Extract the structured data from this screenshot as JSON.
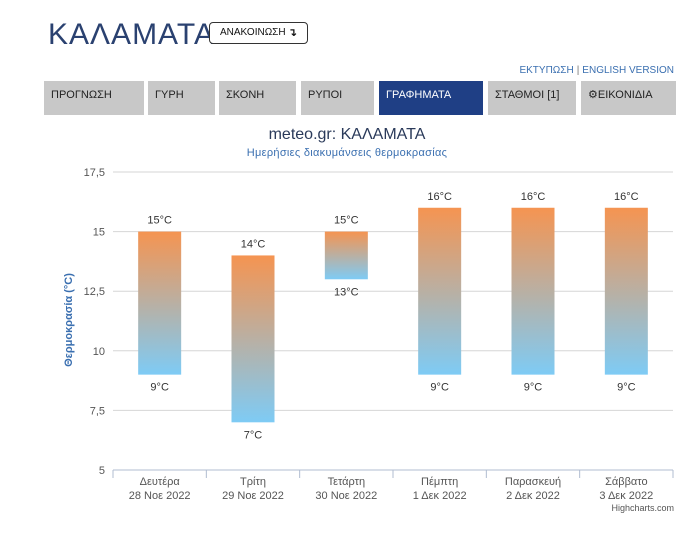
{
  "header": {
    "city": "ΚΑΛΑΜΑΤΑ",
    "announce_label": "ΑΝΑΚΟΙΝΩΣΗ",
    "announce_icon": "down-arrow-icon"
  },
  "toplinks": {
    "print": "ΕΚΤΥΠΩΣΗ",
    "separator": "|",
    "english": "ENGLISH VERSION"
  },
  "tabs": [
    {
      "label": "ΠΡΟΓΝΩΣΗ",
      "active": false
    },
    {
      "label": "ΓΥΡΗ",
      "active": false
    },
    {
      "label": "ΣΚΟΝΗ",
      "active": false
    },
    {
      "label": "ΡΥΠΟΙ",
      "active": false
    },
    {
      "label": "ΓΡΑΦΗΜΑΤΑ",
      "active": true
    },
    {
      "label": "ΣΤΑΘΜΟΙ [1]",
      "active": false
    },
    {
      "label": "ΕΙΚΟΝΙΔΙΑ",
      "active": false,
      "icon": "gear-icon"
    }
  ],
  "colors": {
    "accent": "#1f3f85",
    "bar_top": "#f59451",
    "bar_bottom": "#7ecbf5",
    "tab_bg": "#c8c8c8"
  },
  "credits": "Highcharts.com",
  "chart_data": {
    "type": "columnrange",
    "title": "meteo.gr: ΚΑΛΑΜΑΤΑ",
    "subtitle": "Ημερήσιες διακυμάνσεις θερμοκρασίας",
    "ylabel": "Θερμοκρασία (°C)",
    "ylim": [
      5,
      17.5
    ],
    "yticks": [
      "5",
      "7,5",
      "10",
      "12,5",
      "15",
      "17,5"
    ],
    "ytick_values": [
      5,
      7.5,
      10,
      12.5,
      15,
      17.5
    ],
    "categories": [
      {
        "day": "Δευτέρα",
        "date": "28 Νοε 2022"
      },
      {
        "day": "Τρίτη",
        "date": "29 Νοε 2022"
      },
      {
        "day": "Τετάρτη",
        "date": "30 Νοε 2022"
      },
      {
        "day": "Πέμπτη",
        "date": "1 Δεκ 2022"
      },
      {
        "day": "Παρασκευή",
        "date": "2 Δεκ 2022"
      },
      {
        "day": "Σάββατο",
        "date": "3 Δεκ 2022"
      }
    ],
    "low": [
      9,
      7,
      13,
      9,
      9,
      9
    ],
    "high": [
      15,
      14,
      15,
      16,
      16,
      16
    ],
    "low_labels": [
      "9°C",
      "7°C",
      "13°C",
      "9°C",
      "9°C",
      "9°C"
    ],
    "high_labels": [
      "15°C",
      "14°C",
      "15°C",
      "16°C",
      "16°C",
      "16°C"
    ],
    "grid": true
  }
}
